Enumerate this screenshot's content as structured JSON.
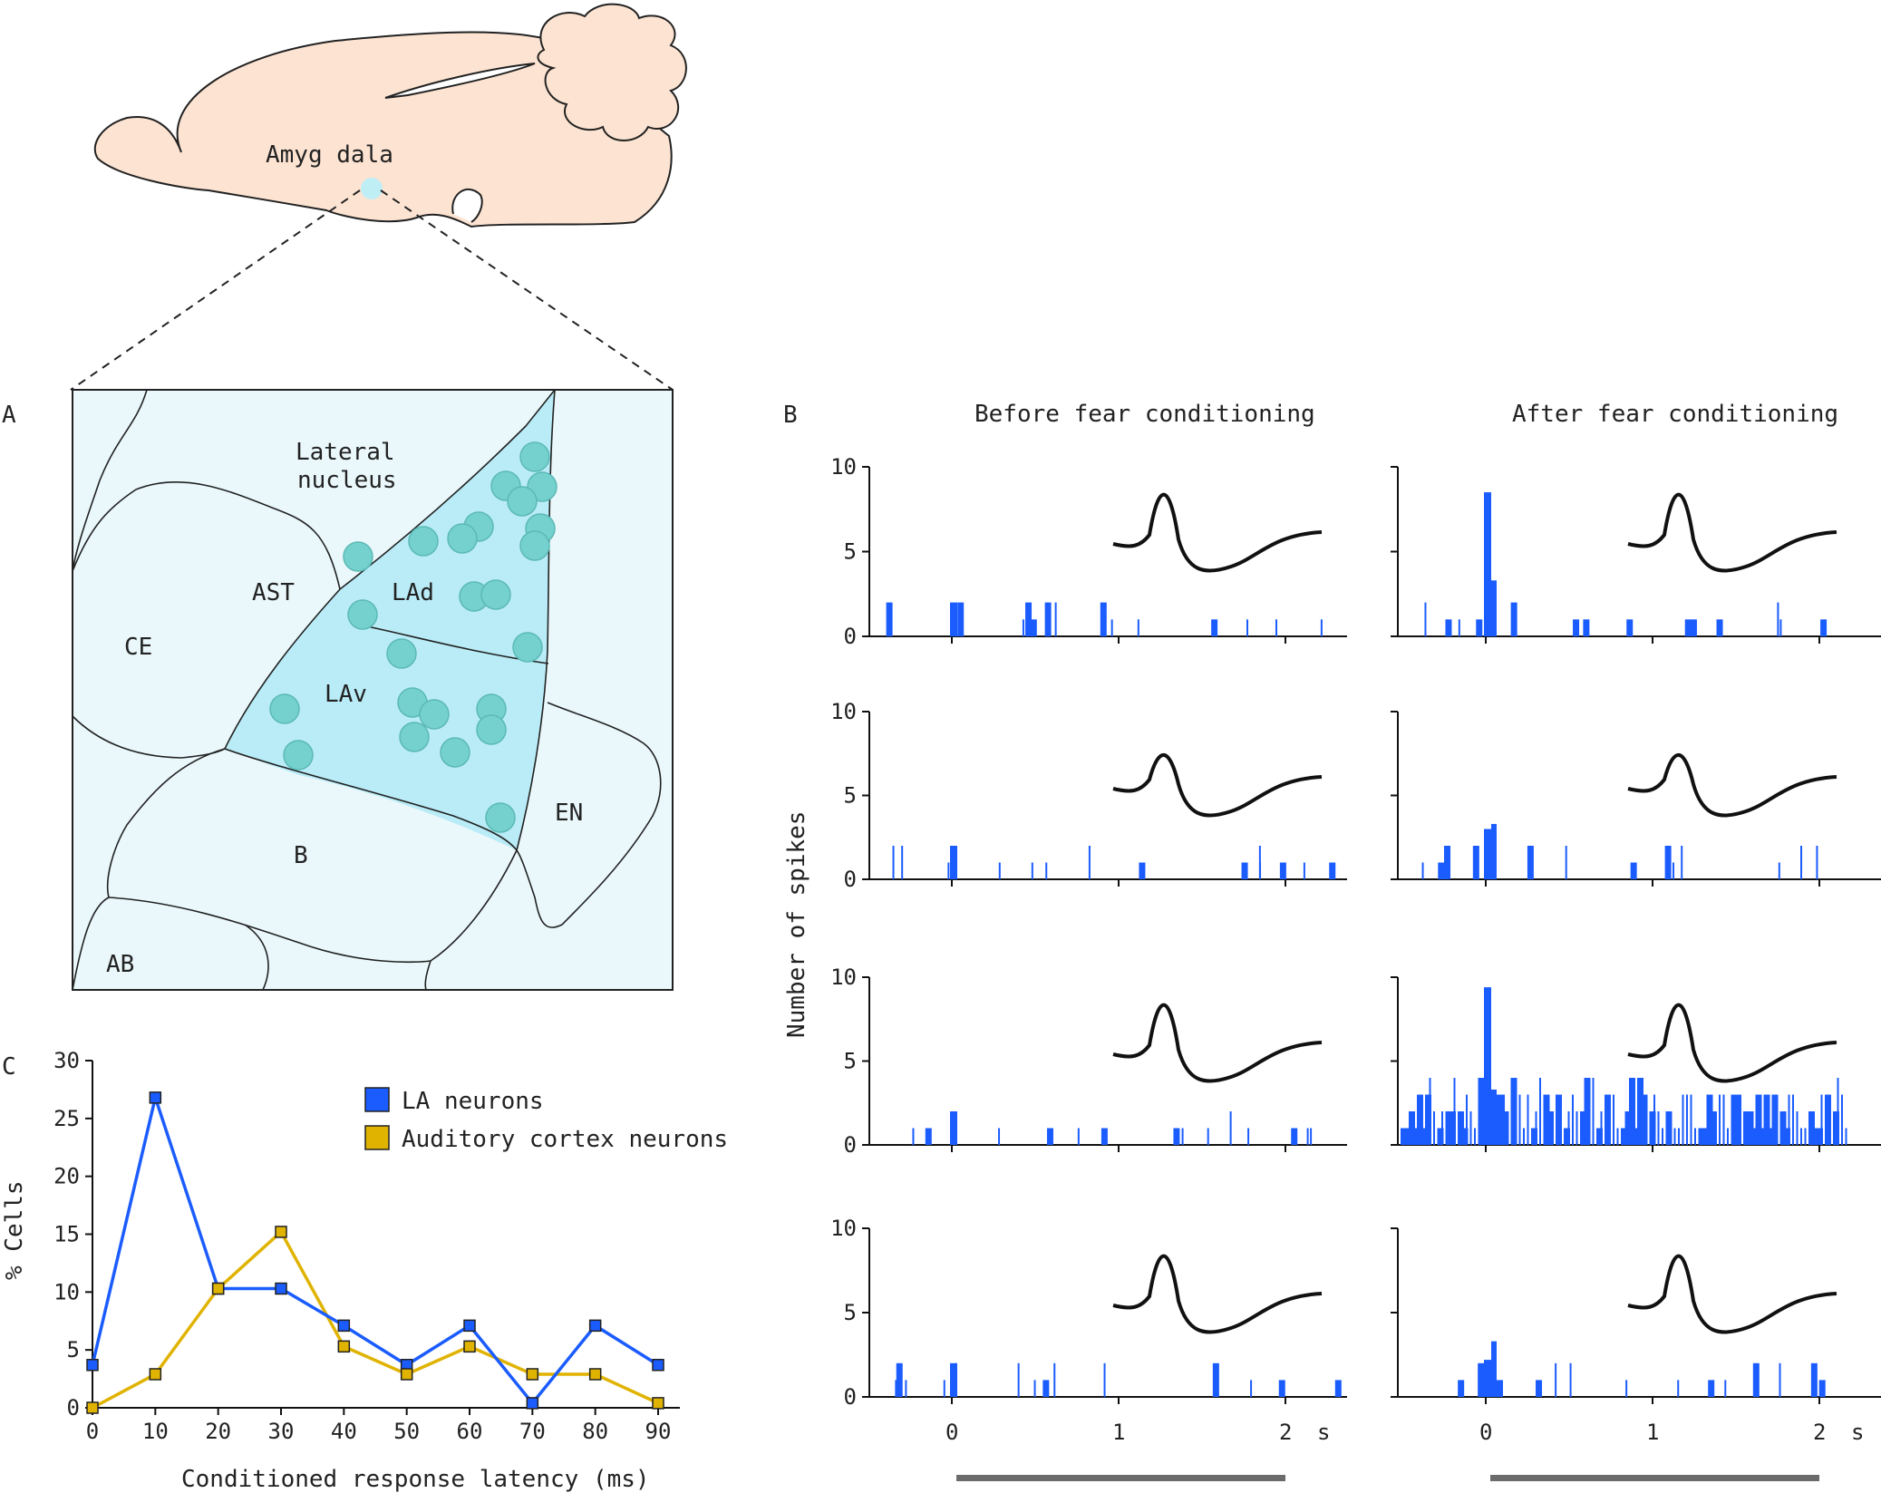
{
  "panel_letters": {
    "a": "A",
    "b": "B",
    "c": "C"
  },
  "brain": {
    "amygdala_label": "Amyg dala"
  },
  "panel_a": {
    "regions": {
      "lateral_nucleus": [
        "Lateral",
        "nucleus"
      ],
      "ast": "AST",
      "lad": "LAd",
      "ce": "CE",
      "lav": "LAv",
      "en": "EN",
      "b": "B",
      "ab": "AB"
    },
    "colors": {
      "background": "#eaf8fb",
      "lateral": "#b9ecf7",
      "neuron": "#74d1cd",
      "brain": "#fde4d2"
    }
  },
  "panel_b": {
    "col_titles": [
      "Before fear conditioning",
      "After fear conditioning"
    ],
    "ylabel": "Number of spikes",
    "x_ticks": [
      "0",
      "1",
      "2"
    ],
    "x_unit": "s",
    "y_ticks": [
      "10",
      "5",
      "0"
    ],
    "bar_color": "#1b5cff",
    "stimulus_bar_color": "#6b6b6b"
  },
  "chart_data": {
    "type": "line",
    "title": "",
    "xlabel": "Conditioned response latency (ms)",
    "ylabel": "% Cells",
    "x": [
      0,
      10,
      20,
      30,
      40,
      50,
      60,
      70,
      80,
      90
    ],
    "xlim": [
      0,
      90
    ],
    "ylim": [
      0,
      30
    ],
    "x_ticks": [
      "0",
      "10",
      "20",
      "30",
      "40",
      "50",
      "60",
      "70",
      "80",
      "90"
    ],
    "y_ticks": [
      "30",
      "25",
      "20",
      "15",
      "10",
      "5",
      "0"
    ],
    "legend_position": "top-right",
    "series": [
      {
        "name": "LA neurons",
        "color": "#1b5cff",
        "values": [
          3.7,
          26.8,
          10.3,
          10.3,
          7.1,
          3.7,
          7.1,
          0.4,
          7.1,
          3.7
        ]
      },
      {
        "name": "Auditory cortex neurons",
        "color": "#e0b300",
        "values": [
          0,
          2.9,
          10.3,
          15.2,
          5.3,
          2.9,
          5.3,
          2.9,
          2.9,
          0.4
        ]
      }
    ]
  }
}
